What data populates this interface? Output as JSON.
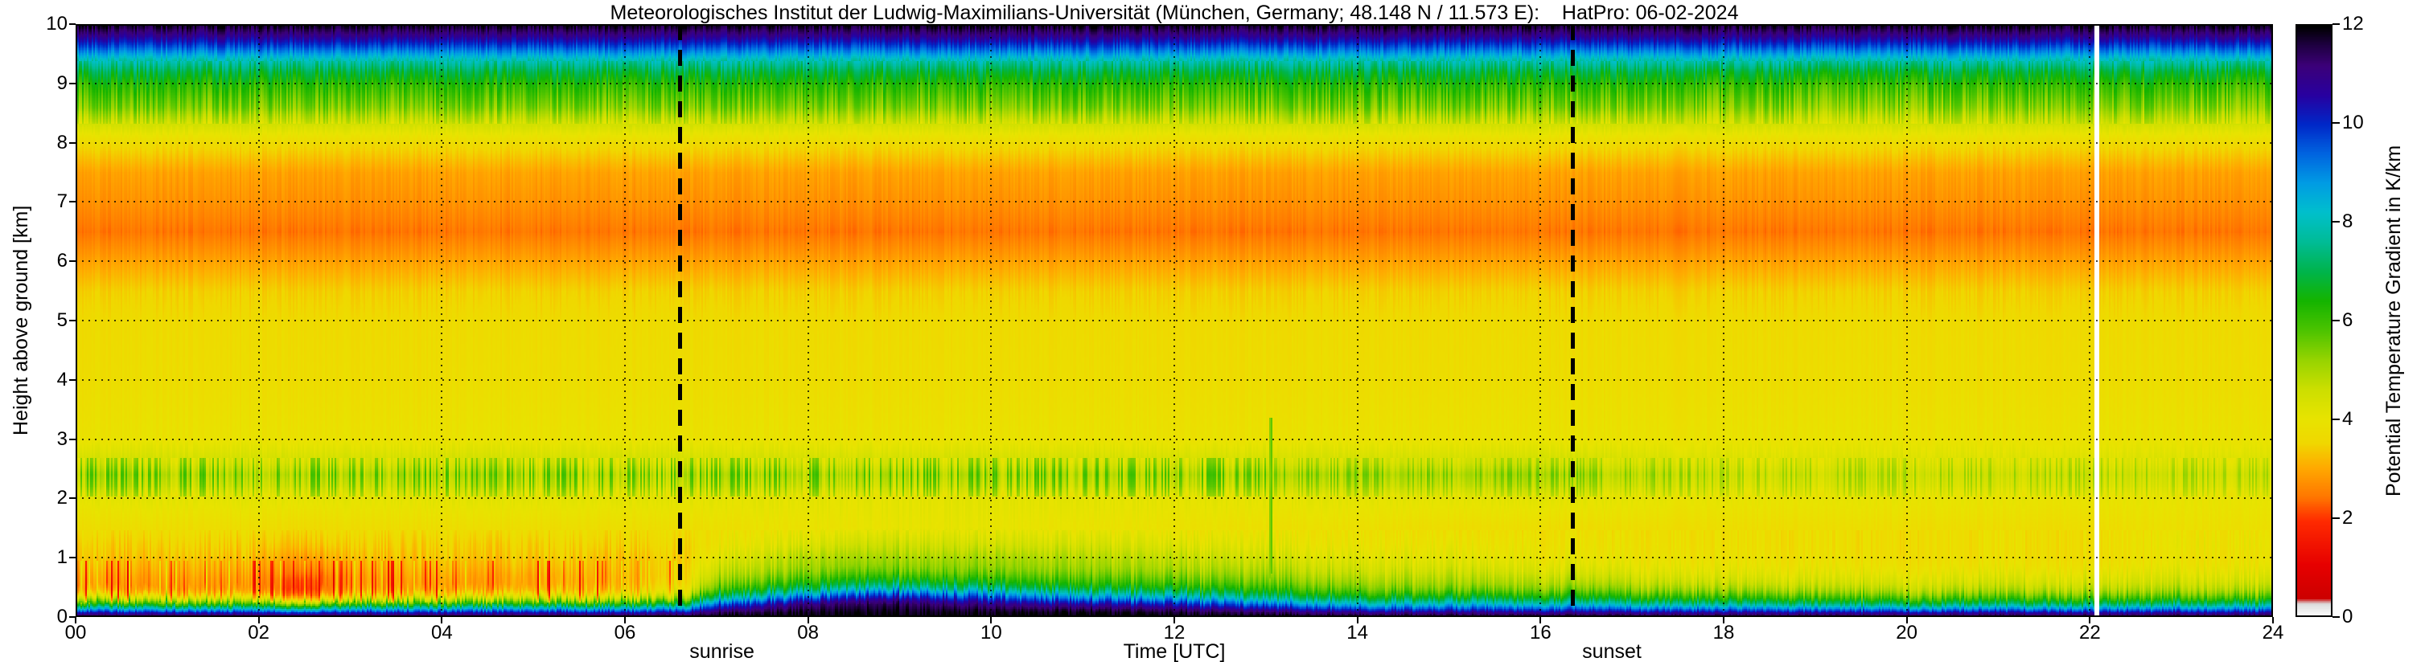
{
  "figure": {
    "title": "Meteorologisches Institut der Ludwig-Maximilians-Universität (München, Germany; 48.148 N / 11.573 E):    HatPro: 06-02-2024"
  },
  "chart_data": {
    "type": "heatmap",
    "title": "Meteorologisches Institut der Ludwig-Maximilians-Universität (München, Germany; 48.148 N / 11.573 E):    HatPro: 06-02-2024",
    "xlabel": "Time [UTC]",
    "ylabel": "Height above ground [km]",
    "colorbar_label": "Potential Temperature Gradient in K/km",
    "x_range": [
      0,
      24
    ],
    "y_range": [
      0,
      10
    ],
    "color_range": [
      0,
      12
    ],
    "grid": "dotted",
    "legend_position": "right-colorbar",
    "x_ticks": [
      {
        "value": 0,
        "label": "00"
      },
      {
        "value": 2,
        "label": "02"
      },
      {
        "value": 4,
        "label": "04"
      },
      {
        "value": 6,
        "label": "06"
      },
      {
        "value": 8,
        "label": "08"
      },
      {
        "value": 10,
        "label": "10"
      },
      {
        "value": 12,
        "label": "12"
      },
      {
        "value": 14,
        "label": "14"
      },
      {
        "value": 16,
        "label": "16"
      },
      {
        "value": 18,
        "label": "18"
      },
      {
        "value": 20,
        "label": "20"
      },
      {
        "value": 22,
        "label": "22"
      },
      {
        "value": 24,
        "label": "24"
      }
    ],
    "y_ticks": [
      {
        "value": 0,
        "label": "0"
      },
      {
        "value": 1,
        "label": "1"
      },
      {
        "value": 2,
        "label": "2"
      },
      {
        "value": 3,
        "label": "3"
      },
      {
        "value": 4,
        "label": "4"
      },
      {
        "value": 5,
        "label": "5"
      },
      {
        "value": 6,
        "label": "6"
      },
      {
        "value": 7,
        "label": "7"
      },
      {
        "value": 8,
        "label": "8"
      },
      {
        "value": 9,
        "label": "9"
      },
      {
        "value": 10,
        "label": "10"
      }
    ],
    "colorbar_ticks": [
      {
        "value": 0,
        "label": "0"
      },
      {
        "value": 2,
        "label": "2"
      },
      {
        "value": 4,
        "label": "4"
      },
      {
        "value": 6,
        "label": "6"
      },
      {
        "value": 8,
        "label": "8"
      },
      {
        "value": 10,
        "label": "10"
      },
      {
        "value": 12,
        "label": "12"
      }
    ],
    "colormap_stops": [
      [
        0.0,
        "#f8f8f8"
      ],
      [
        0.22,
        "#dcdcdc"
      ],
      [
        0.32,
        "#cc0000"
      ],
      [
        1.0,
        "#e60000"
      ],
      [
        1.9,
        "#ff2a00"
      ],
      [
        2.4,
        "#ff7700"
      ],
      [
        3.0,
        "#ffaa00"
      ],
      [
        3.5,
        "#f0d800"
      ],
      [
        4.0,
        "#e8e400"
      ],
      [
        4.6,
        "#ccdf00"
      ],
      [
        5.2,
        "#96d400"
      ],
      [
        5.8,
        "#4cc400"
      ],
      [
        6.4,
        "#14b400"
      ],
      [
        7.0,
        "#00b44c"
      ],
      [
        7.6,
        "#00bc96"
      ],
      [
        8.2,
        "#00c0cc"
      ],
      [
        8.8,
        "#009ce4"
      ],
      [
        9.4,
        "#0064e0"
      ],
      [
        10.0,
        "#0028c8"
      ],
      [
        10.6,
        "#2800a0"
      ],
      [
        11.2,
        "#3c0078"
      ],
      [
        11.6,
        "#200044"
      ],
      [
        12.0,
        "#000000"
      ]
    ],
    "height_levels": [
      0,
      0.05,
      0.1,
      0.2,
      0.3,
      0.4,
      0.5,
      0.65,
      0.8,
      1.0,
      1.2,
      1.5,
      2.0,
      2.2,
      2.4,
      2.6,
      3.0,
      3.5,
      4.0,
      5.0,
      5.5,
      6.0,
      6.5,
      7.0,
      7.5,
      8.0,
      8.3,
      8.6,
      9.0,
      9.2,
      9.4,
      9.6,
      9.8,
      10.0
    ],
    "time_steps": [
      0,
      2,
      2.5,
      3,
      4,
      5,
      6,
      6.6,
      7,
      8,
      9,
      10,
      11,
      12,
      13,
      14,
      15,
      16.4,
      18,
      20,
      22,
      23,
      24
    ],
    "values": [
      [
        11.6,
        10.6,
        9.0,
        6.2,
        4.4,
        3.2,
        2.8,
        2.9,
        3.1,
        3.3,
        3.4,
        3.7,
        4.1,
        4.7,
        5.0,
        4.5,
        3.9,
        3.8,
        3.7,
        3.6,
        3.4,
        2.9,
        2.4,
        2.7,
        2.9,
        3.6,
        4.4,
        5.4,
        6.2,
        6.9,
        7.9,
        9.4,
        10.8,
        11.9
      ],
      [
        11.6,
        10.5,
        8.8,
        6.0,
        4.2,
        3.0,
        2.7,
        2.8,
        3.0,
        3.2,
        3.4,
        3.7,
        4.1,
        4.7,
        5.0,
        4.5,
        3.9,
        3.8,
        3.7,
        3.6,
        3.4,
        2.9,
        2.4,
        2.7,
        2.9,
        3.6,
        4.4,
        5.4,
        6.2,
        6.9,
        7.9,
        9.4,
        10.8,
        11.9
      ],
      [
        11.6,
        10.4,
        8.6,
        5.6,
        3.4,
        2.2,
        1.9,
        2.0,
        2.4,
        2.8,
        3.2,
        3.6,
        4.1,
        4.7,
        5.0,
        4.5,
        3.9,
        3.8,
        3.7,
        3.6,
        3.4,
        2.9,
        2.4,
        2.7,
        2.9,
        3.6,
        4.4,
        5.4,
        6.2,
        6.9,
        7.9,
        9.4,
        10.8,
        11.9
      ],
      [
        11.6,
        10.5,
        8.8,
        6.0,
        4.2,
        3.1,
        2.8,
        2.8,
        3.0,
        3.2,
        3.4,
        3.7,
        4.1,
        4.7,
        5.0,
        4.5,
        3.9,
        3.8,
        3.7,
        3.6,
        3.4,
        2.9,
        2.4,
        2.7,
        2.9,
        3.6,
        4.4,
        5.4,
        6.2,
        6.9,
        7.9,
        9.4,
        10.8,
        11.9
      ],
      [
        11.6,
        10.6,
        9.0,
        6.2,
        4.4,
        3.2,
        2.8,
        2.9,
        3.1,
        3.3,
        3.4,
        3.7,
        4.1,
        4.7,
        5.0,
        4.5,
        3.9,
        3.8,
        3.7,
        3.6,
        3.4,
        2.9,
        2.4,
        2.7,
        2.9,
        3.6,
        4.4,
        5.4,
        6.2,
        6.9,
        7.9,
        9.4,
        10.8,
        11.9
      ],
      [
        11.6,
        10.6,
        9.1,
        6.3,
        4.5,
        3.3,
        2.9,
        2.9,
        3.1,
        3.3,
        3.4,
        3.7,
        4.1,
        4.7,
        5.0,
        4.5,
        3.9,
        3.8,
        3.7,
        3.6,
        3.4,
        2.9,
        2.4,
        2.7,
        2.9,
        3.6,
        4.4,
        5.4,
        6.2,
        6.9,
        7.9,
        9.4,
        10.8,
        11.9
      ],
      [
        11.7,
        10.7,
        9.2,
        6.5,
        4.7,
        3.6,
        3.2,
        3.1,
        3.2,
        3.3,
        3.5,
        3.7,
        4.1,
        4.7,
        5.0,
        4.5,
        3.9,
        3.8,
        3.7,
        3.6,
        3.4,
        2.9,
        2.4,
        2.7,
        2.9,
        3.6,
        4.4,
        5.4,
        6.2,
        6.9,
        7.9,
        9.4,
        10.8,
        11.9
      ],
      [
        11.7,
        10.8,
        9.4,
        6.8,
        5.0,
        4.0,
        3.6,
        3.4,
        3.4,
        3.4,
        3.5,
        3.7,
        4.1,
        4.7,
        5.0,
        4.5,
        3.9,
        3.8,
        3.7,
        3.6,
        3.4,
        2.9,
        2.4,
        2.7,
        2.9,
        3.6,
        4.4,
        5.4,
        6.2,
        6.9,
        7.9,
        9.4,
        10.8,
        11.9
      ],
      [
        11.9,
        11.6,
        11.0,
        9.6,
        7.8,
        6.4,
        5.6,
        5.0,
        4.6,
        4.2,
        3.9,
        3.8,
        4.1,
        4.7,
        5.0,
        4.5,
        3.9,
        3.8,
        3.7,
        3.6,
        3.4,
        2.9,
        2.4,
        2.7,
        2.9,
        3.6,
        4.4,
        5.4,
        6.2,
        6.9,
        7.9,
        9.4,
        10.8,
        11.9
      ],
      [
        12,
        11.9,
        11.7,
        11.2,
        9.8,
        8.2,
        6.8,
        5.8,
        5.2,
        4.9,
        4.4,
        3.9,
        4.1,
        4.7,
        5.0,
        4.5,
        3.9,
        3.8,
        3.7,
        3.6,
        3.4,
        2.9,
        2.4,
        2.7,
        2.9,
        3.6,
        4.4,
        5.4,
        6.2,
        6.9,
        7.9,
        9.4,
        10.8,
        11.9
      ],
      [
        12,
        11.9,
        11.8,
        11.5,
        10.6,
        9.2,
        7.6,
        6.2,
        5.4,
        5.0,
        4.6,
        4.0,
        4.1,
        4.7,
        5.0,
        4.5,
        3.9,
        3.8,
        3.7,
        3.6,
        3.4,
        2.9,
        2.4,
        2.7,
        2.9,
        3.6,
        4.4,
        5.4,
        6.2,
        6.9,
        7.9,
        9.4,
        10.8,
        11.9
      ],
      [
        12,
        11.9,
        11.7,
        11.0,
        9.8,
        8.4,
        7.0,
        5.9,
        5.3,
        5.0,
        4.5,
        4.0,
        4.1,
        4.7,
        5.0,
        4.5,
        3.9,
        3.8,
        3.7,
        3.6,
        3.4,
        2.9,
        2.4,
        2.7,
        2.9,
        3.6,
        4.4,
        5.4,
        6.2,
        6.9,
        7.9,
        9.4,
        10.8,
        11.9
      ],
      [
        12,
        11.9,
        11.6,
        10.6,
        9.0,
        7.6,
        6.4,
        5.6,
        5.1,
        4.8,
        4.4,
        3.9,
        4.1,
        4.7,
        5.0,
        4.5,
        3.9,
        3.8,
        3.7,
        3.6,
        3.4,
        2.9,
        2.4,
        2.7,
        2.9,
        3.6,
        4.4,
        5.4,
        6.2,
        6.9,
        7.9,
        9.4,
        10.8,
        11.9
      ],
      [
        12,
        11.8,
        11.4,
        10.2,
        8.6,
        7.2,
        6.2,
        5.5,
        5.0,
        4.7,
        4.3,
        3.9,
        4.1,
        4.7,
        5.0,
        4.5,
        3.9,
        3.8,
        3.7,
        3.6,
        3.4,
        2.9,
        2.4,
        2.7,
        2.9,
        3.6,
        4.4,
        5.4,
        6.2,
        6.9,
        7.9,
        9.4,
        10.8,
        11.9
      ],
      [
        11.9,
        11.5,
        10.8,
        9.2,
        7.6,
        6.5,
        5.8,
        5.2,
        4.8,
        4.4,
        4.1,
        3.8,
        4.1,
        4.7,
        5.0,
        4.5,
        3.9,
        3.8,
        3.7,
        3.6,
        3.4,
        2.9,
        2.4,
        2.7,
        2.9,
        3.6,
        4.4,
        5.4,
        6.2,
        6.9,
        7.9,
        9.4,
        10.8,
        11.9
      ],
      [
        11.8,
        11.2,
        10.2,
        8.4,
        7.0,
        6.0,
        5.4,
        4.9,
        4.5,
        4.2,
        3.9,
        3.8,
        4.1,
        4.7,
        5.0,
        4.5,
        3.9,
        3.8,
        3.7,
        3.6,
        3.4,
        2.9,
        2.4,
        2.7,
        2.9,
        3.6,
        4.4,
        5.4,
        6.2,
        6.9,
        7.9,
        9.4,
        10.8,
        11.9
      ],
      [
        11.8,
        11.1,
        10.0,
        8.2,
        6.8,
        5.8,
        5.2,
        4.8,
        4.4,
        4.1,
        3.9,
        3.7,
        4.1,
        4.7,
        5.0,
        4.5,
        3.9,
        3.8,
        3.7,
        3.6,
        3.4,
        2.9,
        2.4,
        2.7,
        2.9,
        3.6,
        4.4,
        5.4,
        6.2,
        6.9,
        7.9,
        9.4,
        10.8,
        11.9
      ],
      [
        11.8,
        11.0,
        9.9,
        8.0,
        6.6,
        5.7,
        5.1,
        4.6,
        4.2,
        3.9,
        3.8,
        3.7,
        4.1,
        4.7,
        5.0,
        4.5,
        3.9,
        3.8,
        3.7,
        3.6,
        3.4,
        2.9,
        2.4,
        2.7,
        2.9,
        3.6,
        4.4,
        5.4,
        6.2,
        6.9,
        7.9,
        9.4,
        10.8,
        11.9
      ],
      [
        11.7,
        10.9,
        9.6,
        7.6,
        6.2,
        5.4,
        4.8,
        4.3,
        4.0,
        3.8,
        3.7,
        3.7,
        4.0,
        4.4,
        4.6,
        4.3,
        3.9,
        3.8,
        3.7,
        3.6,
        3.4,
        2.9,
        2.4,
        2.7,
        2.9,
        3.6,
        4.4,
        5.3,
        6.1,
        6.8,
        7.9,
        9.4,
        10.8,
        11.9
      ],
      [
        11.7,
        10.8,
        9.4,
        7.2,
        5.9,
        5.1,
        4.6,
        4.2,
        3.9,
        3.7,
        3.7,
        3.7,
        4.0,
        4.4,
        4.6,
        4.3,
        3.9,
        3.8,
        3.7,
        3.6,
        3.4,
        2.9,
        2.4,
        2.7,
        2.9,
        3.6,
        4.4,
        5.3,
        6.1,
        6.8,
        7.9,
        9.4,
        10.8,
        11.9
      ],
      [
        11.7,
        10.8,
        9.4,
        7.2,
        5.9,
        5.1,
        4.6,
        4.2,
        3.9,
        3.7,
        3.7,
        3.7,
        4.0,
        4.4,
        4.6,
        4.3,
        3.9,
        3.8,
        3.7,
        3.6,
        3.4,
        2.9,
        2.4,
        2.7,
        2.9,
        3.6,
        4.4,
        5.3,
        6.1,
        6.8,
        7.9,
        9.4,
        10.8,
        11.9
      ],
      [
        11.7,
        10.8,
        9.5,
        7.4,
        6.0,
        5.2,
        4.7,
        4.3,
        4.0,
        3.8,
        3.9,
        3.8,
        4.0,
        4.4,
        4.6,
        4.3,
        3.9,
        3.8,
        3.7,
        3.6,
        3.4,
        2.9,
        2.4,
        2.7,
        2.9,
        3.6,
        4.4,
        5.3,
        6.1,
        6.8,
        7.9,
        9.4,
        10.8,
        11.9
      ],
      [
        11.7,
        10.8,
        9.5,
        7.4,
        6.0,
        5.2,
        4.7,
        4.3,
        4.0,
        3.8,
        3.9,
        3.8,
        4.0,
        4.4,
        4.6,
        4.3,
        3.9,
        3.8,
        3.7,
        3.6,
        3.4,
        2.9,
        2.4,
        2.7,
        2.9,
        3.6,
        4.4,
        5.3,
        6.1,
        6.8,
        7.9,
        9.4,
        10.8,
        11.9
      ]
    ],
    "annotations": {
      "sunrise": {
        "time": 6.6,
        "label": "sunrise"
      },
      "sunset": {
        "time": 16.35,
        "label": "sunset"
      },
      "data_gap_time": 22.08,
      "green_spike": {
        "time": 13.05,
        "top_km": 3.35
      }
    }
  }
}
